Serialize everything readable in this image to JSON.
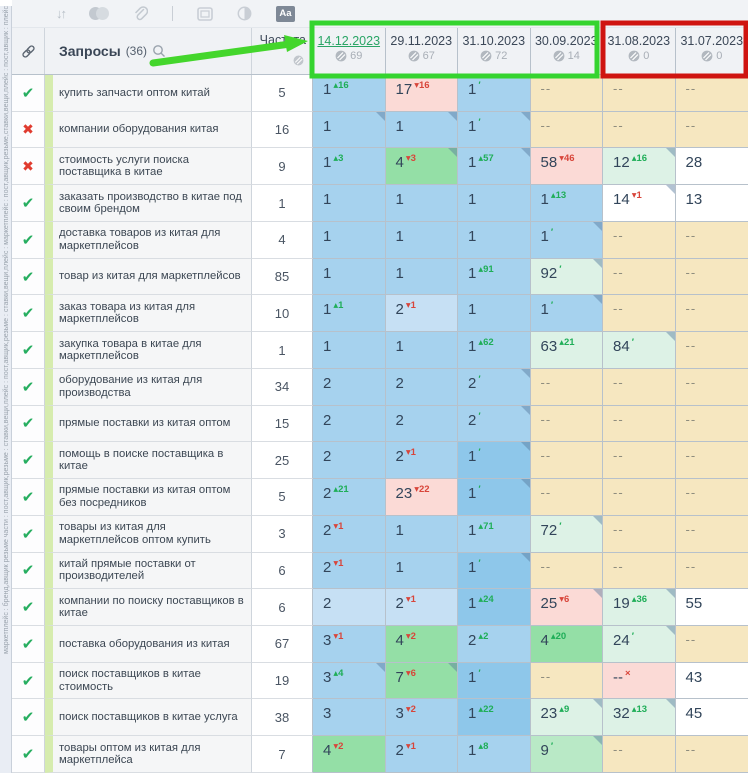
{
  "side_strip": {
    "text": "маркетплейс : бренд,авщик резьме части : пост,авщик,резьме : ставки,вещи,плейс : пост,авщик,резьме : ставки,вещи,плейс : маркетплейс : пост,авщик,резьме,ставки,вещи,плейс : пост,авщик : плейс"
  },
  "toolbar": {
    "sort_glyph": "↓↑",
    "divider": "",
    "aa_label": "Aa"
  },
  "table": {
    "queries_label": "Запросы",
    "queries_count": "(36)",
    "freq_label": "Частота",
    "columns": [
      {
        "date": "14.12.2023",
        "count": "69",
        "active": true
      },
      {
        "date": "29.11.2023",
        "count": "67",
        "active": false
      },
      {
        "date": "31.10.2023",
        "count": "72",
        "active": false
      },
      {
        "date": "30.09.2023",
        "count": "14",
        "active": false
      },
      {
        "date": "31.08.2023",
        "count": "0",
        "active": false
      },
      {
        "date": "31.07.2023",
        "count": "0",
        "active": false
      }
    ],
    "rows": [
      {
        "status": "ok",
        "keyword": "купить запчасти оптом китай",
        "freq": "5",
        "cells": [
          {
            "v": "1",
            "s": "16",
            "d": "up",
            "bg": "blue"
          },
          {
            "v": "17",
            "s": "16",
            "d": "down",
            "bg": "pink"
          },
          {
            "v": "1",
            "d": "new",
            "bg": "blue"
          },
          {
            "v": "--",
            "bg": "beige"
          },
          {
            "v": "--",
            "bg": "beige"
          },
          {
            "v": "--",
            "bg": "beige"
          }
        ]
      },
      {
        "status": "fail",
        "keyword": "компании оборудования китая",
        "freq": "16",
        "cells": [
          {
            "v": "1",
            "bg": "blue",
            "c": true
          },
          {
            "v": "1",
            "bg": "blue",
            "c": true
          },
          {
            "v": "1",
            "d": "new",
            "bg": "blue",
            "c": true
          },
          {
            "v": "--",
            "bg": "beige"
          },
          {
            "v": "--",
            "bg": "beige"
          },
          {
            "v": "--",
            "bg": "beige"
          }
        ]
      },
      {
        "status": "fail",
        "keyword": "стоимость услуги поиска поставщика в китае",
        "freq": "9",
        "cells": [
          {
            "v": "1",
            "s": "3",
            "d": "up",
            "bg": "blue"
          },
          {
            "v": "4",
            "s": "3",
            "d": "down",
            "bg": "green",
            "c": true
          },
          {
            "v": "1",
            "s": "57",
            "d": "up",
            "bg": "blue",
            "c": true
          },
          {
            "v": "58",
            "s": "46",
            "d": "down",
            "bg": "pink"
          },
          {
            "v": "12",
            "s": "16",
            "d": "up",
            "bg": "palegreen",
            "c": true
          },
          {
            "v": "28",
            "bg": "white"
          }
        ]
      },
      {
        "status": "ok",
        "keyword": "заказать производство в китае под своим брендом",
        "freq": "1",
        "cells": [
          {
            "v": "1",
            "bg": "blue"
          },
          {
            "v": "1",
            "bg": "blue"
          },
          {
            "v": "1",
            "bg": "blue"
          },
          {
            "v": "1",
            "s": "13",
            "d": "up",
            "bg": "blue"
          },
          {
            "v": "14",
            "s": "1",
            "d": "down",
            "bg": "white",
            "c": true
          },
          {
            "v": "13",
            "bg": "white"
          }
        ]
      },
      {
        "status": "ok",
        "keyword": "доставка товаров из китая для маркетплейсов",
        "freq": "4",
        "cells": [
          {
            "v": "1",
            "bg": "blue"
          },
          {
            "v": "1",
            "bg": "blue"
          },
          {
            "v": "1",
            "bg": "blue"
          },
          {
            "v": "1",
            "d": "new",
            "bg": "blue",
            "c": true
          },
          {
            "v": "--",
            "bg": "beige"
          },
          {
            "v": "--",
            "bg": "beige"
          }
        ]
      },
      {
        "status": "ok",
        "keyword": "товар из китая для маркетплейсов",
        "freq": "85",
        "cells": [
          {
            "v": "1",
            "bg": "blue"
          },
          {
            "v": "1",
            "bg": "blue"
          },
          {
            "v": "1",
            "s": "91",
            "d": "up",
            "bg": "blue"
          },
          {
            "v": "92",
            "d": "new",
            "bg": "palegreen",
            "c": true
          },
          {
            "v": "--",
            "bg": "beige"
          },
          {
            "v": "--",
            "bg": "beige"
          }
        ]
      },
      {
        "status": "ok",
        "keyword": "заказ товара из китая для маркетплейсов",
        "freq": "10",
        "cells": [
          {
            "v": "1",
            "s": "1",
            "d": "up",
            "bg": "blue"
          },
          {
            "v": "2",
            "s": "1",
            "d": "down",
            "bg": "blue2"
          },
          {
            "v": "1",
            "bg": "blue"
          },
          {
            "v": "1",
            "d": "new",
            "bg": "blue",
            "c": true
          },
          {
            "v": "--",
            "bg": "beige"
          },
          {
            "v": "--",
            "bg": "beige"
          }
        ]
      },
      {
        "status": "ok",
        "keyword": "закупка товара в китае для маркетплейсов",
        "freq": "1",
        "cells": [
          {
            "v": "1",
            "bg": "blue"
          },
          {
            "v": "1",
            "bg": "blue"
          },
          {
            "v": "1",
            "s": "62",
            "d": "up",
            "bg": "blue"
          },
          {
            "v": "63",
            "s": "21",
            "d": "up",
            "bg": "palegreen"
          },
          {
            "v": "84",
            "d": "new",
            "bg": "palegreen",
            "c": true
          },
          {
            "v": "--",
            "bg": "beige"
          }
        ]
      },
      {
        "status": "ok",
        "keyword": "оборудование из китая для производства",
        "freq": "34",
        "cells": [
          {
            "v": "2",
            "bg": "blue"
          },
          {
            "v": "2",
            "bg": "blue"
          },
          {
            "v": "2",
            "d": "new",
            "bg": "blue",
            "c": true
          },
          {
            "v": "--",
            "bg": "beige"
          },
          {
            "v": "--",
            "bg": "beige"
          },
          {
            "v": "--",
            "bg": "beige"
          }
        ]
      },
      {
        "status": "ok",
        "keyword": "прямые поставки из китая оптом",
        "freq": "15",
        "cells": [
          {
            "v": "2",
            "bg": "blue"
          },
          {
            "v": "2",
            "bg": "blue"
          },
          {
            "v": "2",
            "d": "new",
            "bg": "blue",
            "c": true
          },
          {
            "v": "--",
            "bg": "beige"
          },
          {
            "v": "--",
            "bg": "beige"
          },
          {
            "v": "--",
            "bg": "beige"
          }
        ]
      },
      {
        "status": "ok",
        "keyword": "помощь в поиске поставщика в китае",
        "freq": "25",
        "cells": [
          {
            "v": "2",
            "bg": "blue"
          },
          {
            "v": "2",
            "s": "1",
            "d": "down",
            "bg": "blue"
          },
          {
            "v": "1",
            "d": "new",
            "bg": "blue3",
            "c": true
          },
          {
            "v": "--",
            "bg": "beige"
          },
          {
            "v": "--",
            "bg": "beige"
          },
          {
            "v": "--",
            "bg": "beige"
          }
        ]
      },
      {
        "status": "ok",
        "keyword": "прямые поставки из китая оптом без посредников",
        "freq": "5",
        "cells": [
          {
            "v": "2",
            "s": "21",
            "d": "up",
            "bg": "blue"
          },
          {
            "v": "23",
            "s": "22",
            "d": "down",
            "bg": "pink"
          },
          {
            "v": "1",
            "d": "new",
            "bg": "blue3",
            "c": true
          },
          {
            "v": "--",
            "bg": "beige"
          },
          {
            "v": "--",
            "bg": "beige"
          },
          {
            "v": "--",
            "bg": "beige"
          }
        ]
      },
      {
        "status": "ok",
        "keyword": "товары из китая для маркетплейсов оптом купить",
        "freq": "3",
        "cells": [
          {
            "v": "2",
            "s": "1",
            "d": "down",
            "bg": "blue"
          },
          {
            "v": "1",
            "bg": "blue"
          },
          {
            "v": "1",
            "s": "71",
            "d": "up",
            "bg": "blue"
          },
          {
            "v": "72",
            "d": "new",
            "bg": "palegreen",
            "c": true
          },
          {
            "v": "--",
            "bg": "beige"
          },
          {
            "v": "--",
            "bg": "beige"
          }
        ]
      },
      {
        "status": "ok",
        "keyword": "китай прямые поставки от производителей",
        "freq": "6",
        "cells": [
          {
            "v": "2",
            "s": "1",
            "d": "down",
            "bg": "blue"
          },
          {
            "v": "1",
            "bg": "blue"
          },
          {
            "v": "1",
            "d": "new",
            "bg": "blue3",
            "c": true
          },
          {
            "v": "--",
            "bg": "beige"
          },
          {
            "v": "--",
            "bg": "beige"
          },
          {
            "v": "--",
            "bg": "beige"
          }
        ]
      },
      {
        "status": "ok",
        "keyword": "компании по поиску поставщиков в китае",
        "freq": "6",
        "cells": [
          {
            "v": "2",
            "bg": "blue2"
          },
          {
            "v": "2",
            "s": "1",
            "d": "down",
            "bg": "blue2"
          },
          {
            "v": "1",
            "s": "24",
            "d": "up",
            "bg": "blue3"
          },
          {
            "v": "25",
            "s": "6",
            "d": "down",
            "bg": "pink",
            "c": true
          },
          {
            "v": "19",
            "s": "36",
            "d": "up",
            "bg": "palegreen",
            "c": true
          },
          {
            "v": "55",
            "bg": "white"
          }
        ]
      },
      {
        "status": "ok",
        "keyword": "поставка оборудования из китая",
        "freq": "67",
        "cells": [
          {
            "v": "3",
            "s": "1",
            "d": "down",
            "bg": "blue"
          },
          {
            "v": "4",
            "s": "2",
            "d": "down",
            "bg": "green"
          },
          {
            "v": "2",
            "s": "2",
            "d": "up",
            "bg": "blue"
          },
          {
            "v": "4",
            "s": "20",
            "d": "up",
            "bg": "green"
          },
          {
            "v": "24",
            "d": "new",
            "bg": "palegreen",
            "c": true
          },
          {
            "v": "--",
            "bg": "beige"
          }
        ]
      },
      {
        "status": "ok",
        "keyword": "поиск поставщиков в китае стоимость",
        "freq": "19",
        "cells": [
          {
            "v": "3",
            "s": "4",
            "d": "up",
            "bg": "blue",
            "c": true
          },
          {
            "v": "7",
            "s": "6",
            "d": "down",
            "bg": "green",
            "c": true
          },
          {
            "v": "1",
            "d": "new",
            "bg": "blue3"
          },
          {
            "v": "--",
            "bg": "beige"
          },
          {
            "v": "--",
            "d": "x",
            "bg": "pink"
          },
          {
            "v": "43",
            "bg": "white"
          }
        ]
      },
      {
        "status": "ok",
        "keyword": "поиск поставщиков в китае услуга",
        "freq": "38",
        "cells": [
          {
            "v": "3",
            "bg": "blue"
          },
          {
            "v": "3",
            "s": "2",
            "d": "down",
            "bg": "blue"
          },
          {
            "v": "1",
            "s": "22",
            "d": "up",
            "bg": "blue3"
          },
          {
            "v": "23",
            "s": "9",
            "d": "up",
            "bg": "palegreen",
            "c": true
          },
          {
            "v": "32",
            "s": "13",
            "d": "up",
            "bg": "palegreen",
            "c": true
          },
          {
            "v": "45",
            "bg": "white"
          }
        ]
      },
      {
        "status": "ok",
        "keyword": "товары оптом из китая для маркетплейса",
        "freq": "7",
        "cells": [
          {
            "v": "4",
            "s": "2",
            "d": "down",
            "bg": "green"
          },
          {
            "v": "2",
            "s": "1",
            "d": "down",
            "bg": "blue"
          },
          {
            "v": "1",
            "s": "8",
            "d": "up",
            "bg": "blue"
          },
          {
            "v": "9",
            "d": "new",
            "bg": "greenmid",
            "c": true
          },
          {
            "v": "--",
            "bg": "beige"
          },
          {
            "v": "--",
            "bg": "beige"
          }
        ]
      }
    ]
  },
  "colors": {
    "top_blue": "#a6d2ee",
    "green_cell": "#94dfa6",
    "pale_green_cell": "#ddf2e6",
    "pink_cell": "#fbdad6",
    "beige_cell": "#f6e7c0",
    "sup_up": "#1fae58",
    "sup_down": "#d8453a",
    "annotation_green": "#35d42f",
    "annotation_red": "#cf1410",
    "active_date": "#2aa566"
  },
  "annotations": {
    "green_box": "highlight-recent-4-dates",
    "red_box": "highlight-old-2-dates",
    "arrow": "points-to-latest-date"
  }
}
